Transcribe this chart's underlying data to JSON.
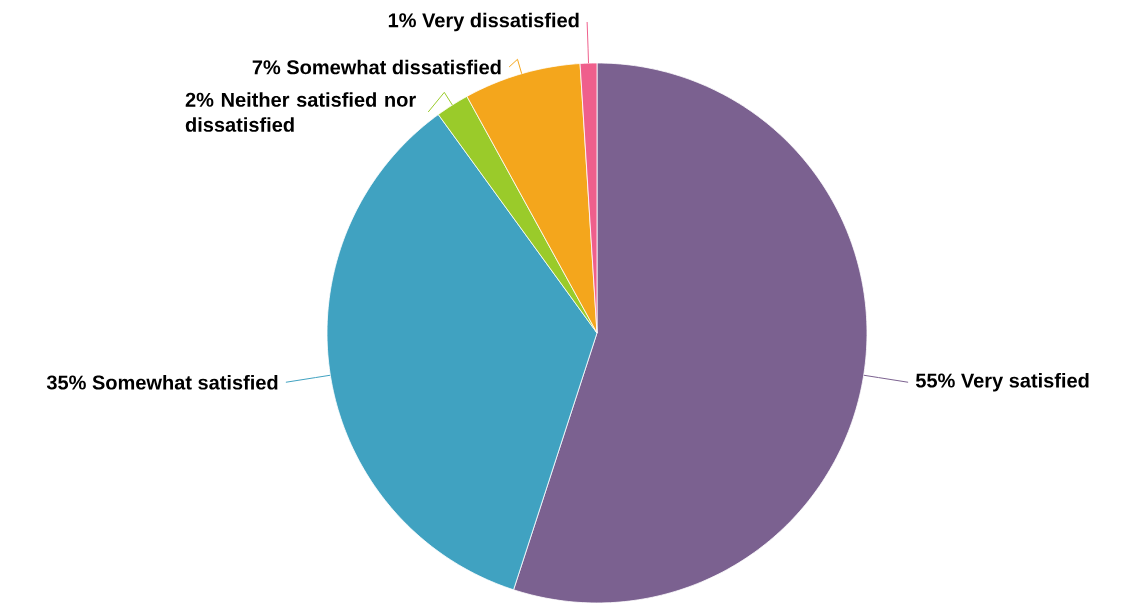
{
  "chart_data": {
    "type": "pie",
    "categories": [
      "Very satisfied",
      "Somewhat satisfied",
      "Neither satisfied nor dissatisfied",
      "Somewhat dissatisfied",
      "Very dissatisfied"
    ],
    "values": [
      55,
      35,
      2,
      7,
      1
    ],
    "value_labels": [
      "55%",
      "35%",
      "2%",
      "7%",
      "1%"
    ],
    "colors": [
      "#7b6190",
      "#40a2c1",
      "#9acb2a",
      "#f4a61c",
      "#ef5f8c"
    ]
  }
}
